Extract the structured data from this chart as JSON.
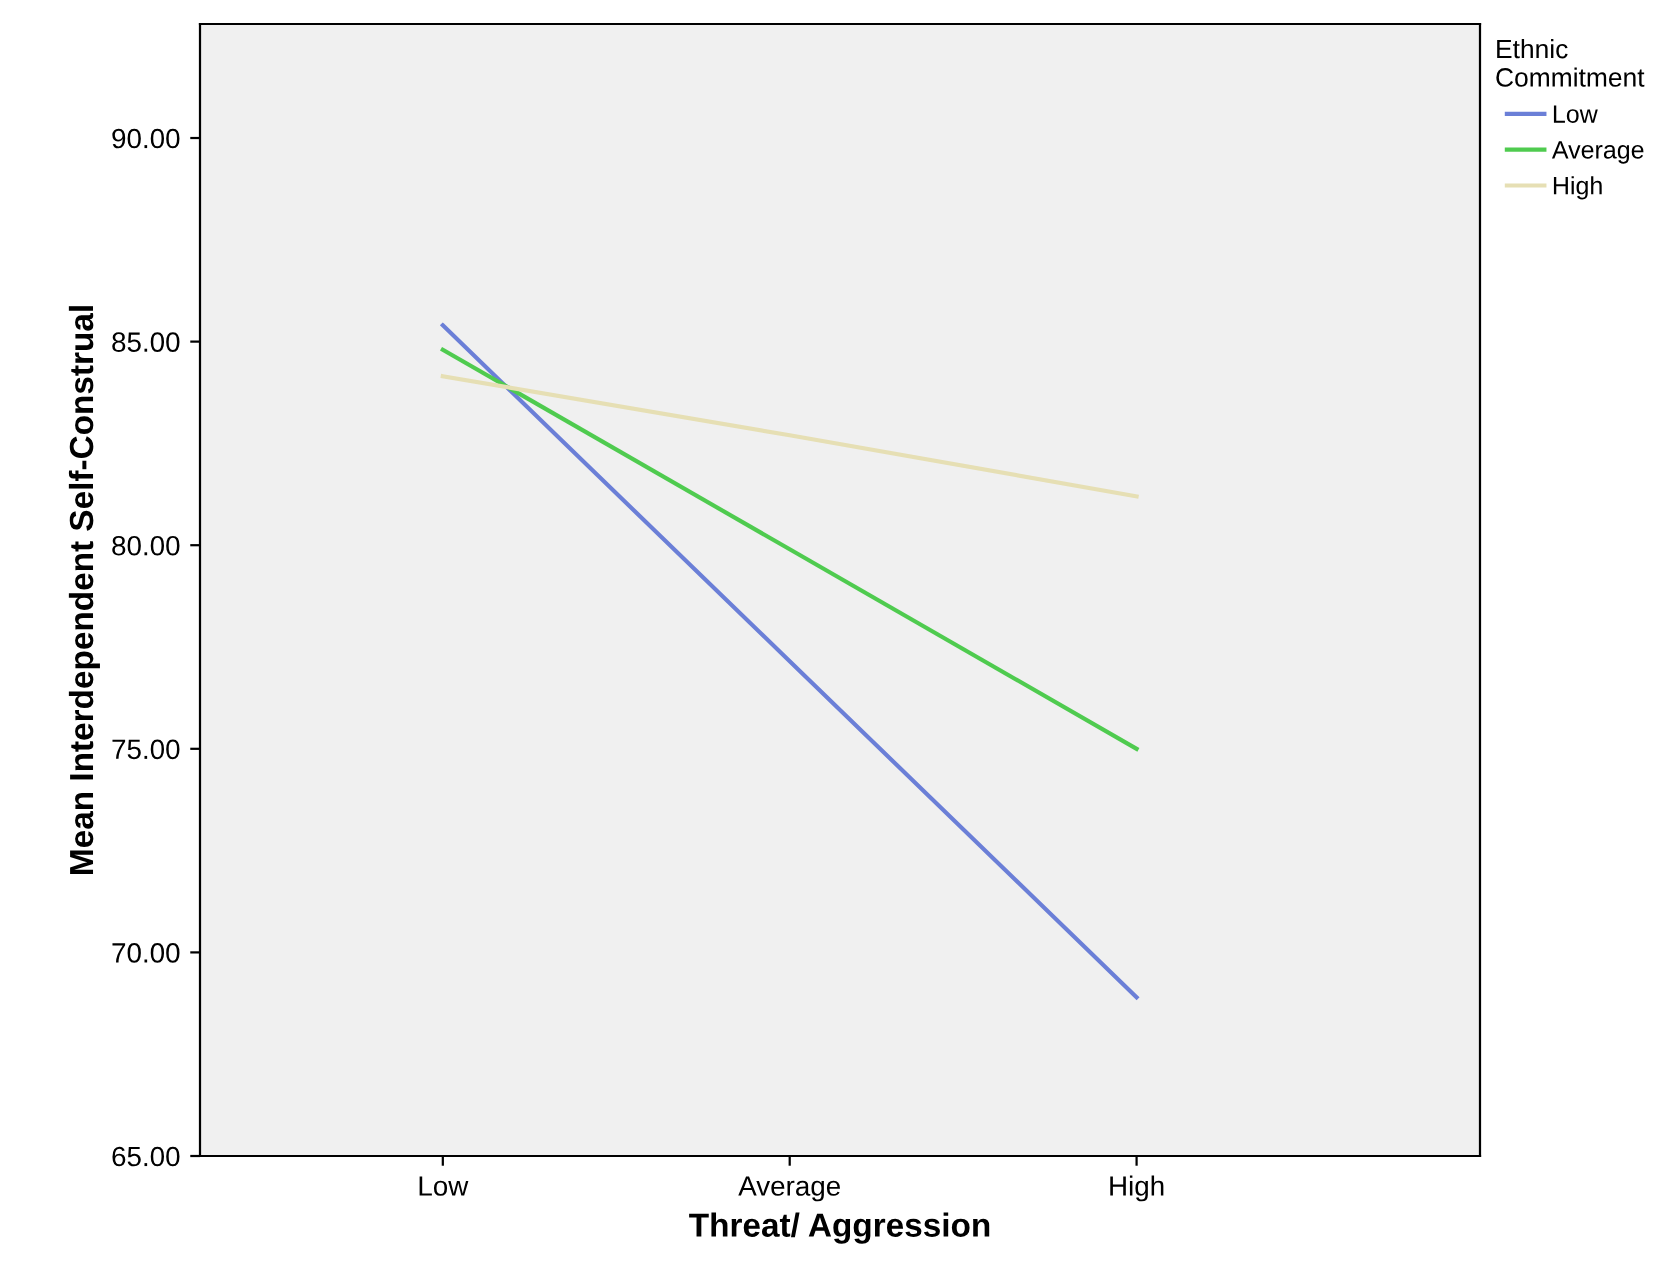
{
  "chart_data": {
    "type": "line",
    "xlabel": "Threat/ Aggression",
    "ylabel": "Mean Interdependent Self-Construal",
    "categories": [
      "Low",
      "Average",
      "High"
    ],
    "series": [
      {
        "name": "Low",
        "color": "#6b7fd7",
        "values": [
          85.4,
          77.15,
          68.9
        ]
      },
      {
        "name": "Average",
        "color": "#4fcb4f",
        "values": [
          84.8,
          79.9,
          75.0
        ]
      },
      {
        "name": "High",
        "color": "#e6dfb4",
        "values": [
          84.15,
          82.7,
          81.2
        ]
      }
    ],
    "ylim": [
      65,
      92.8
    ],
    "yticks": [
      {
        "value": 65,
        "label": "65.00"
      },
      {
        "value": 70,
        "label": "70.00"
      },
      {
        "value": 75,
        "label": "75.00"
      },
      {
        "value": 80,
        "label": "80.00"
      },
      {
        "value": 85,
        "label": "85.00"
      },
      {
        "value": 90,
        "label": "90.00"
      }
    ],
    "legend": "top right",
    "legend_title": "Ethnic\nCommitment",
    "grid": false,
    "marker": "none",
    "line_style": "solid"
  }
}
